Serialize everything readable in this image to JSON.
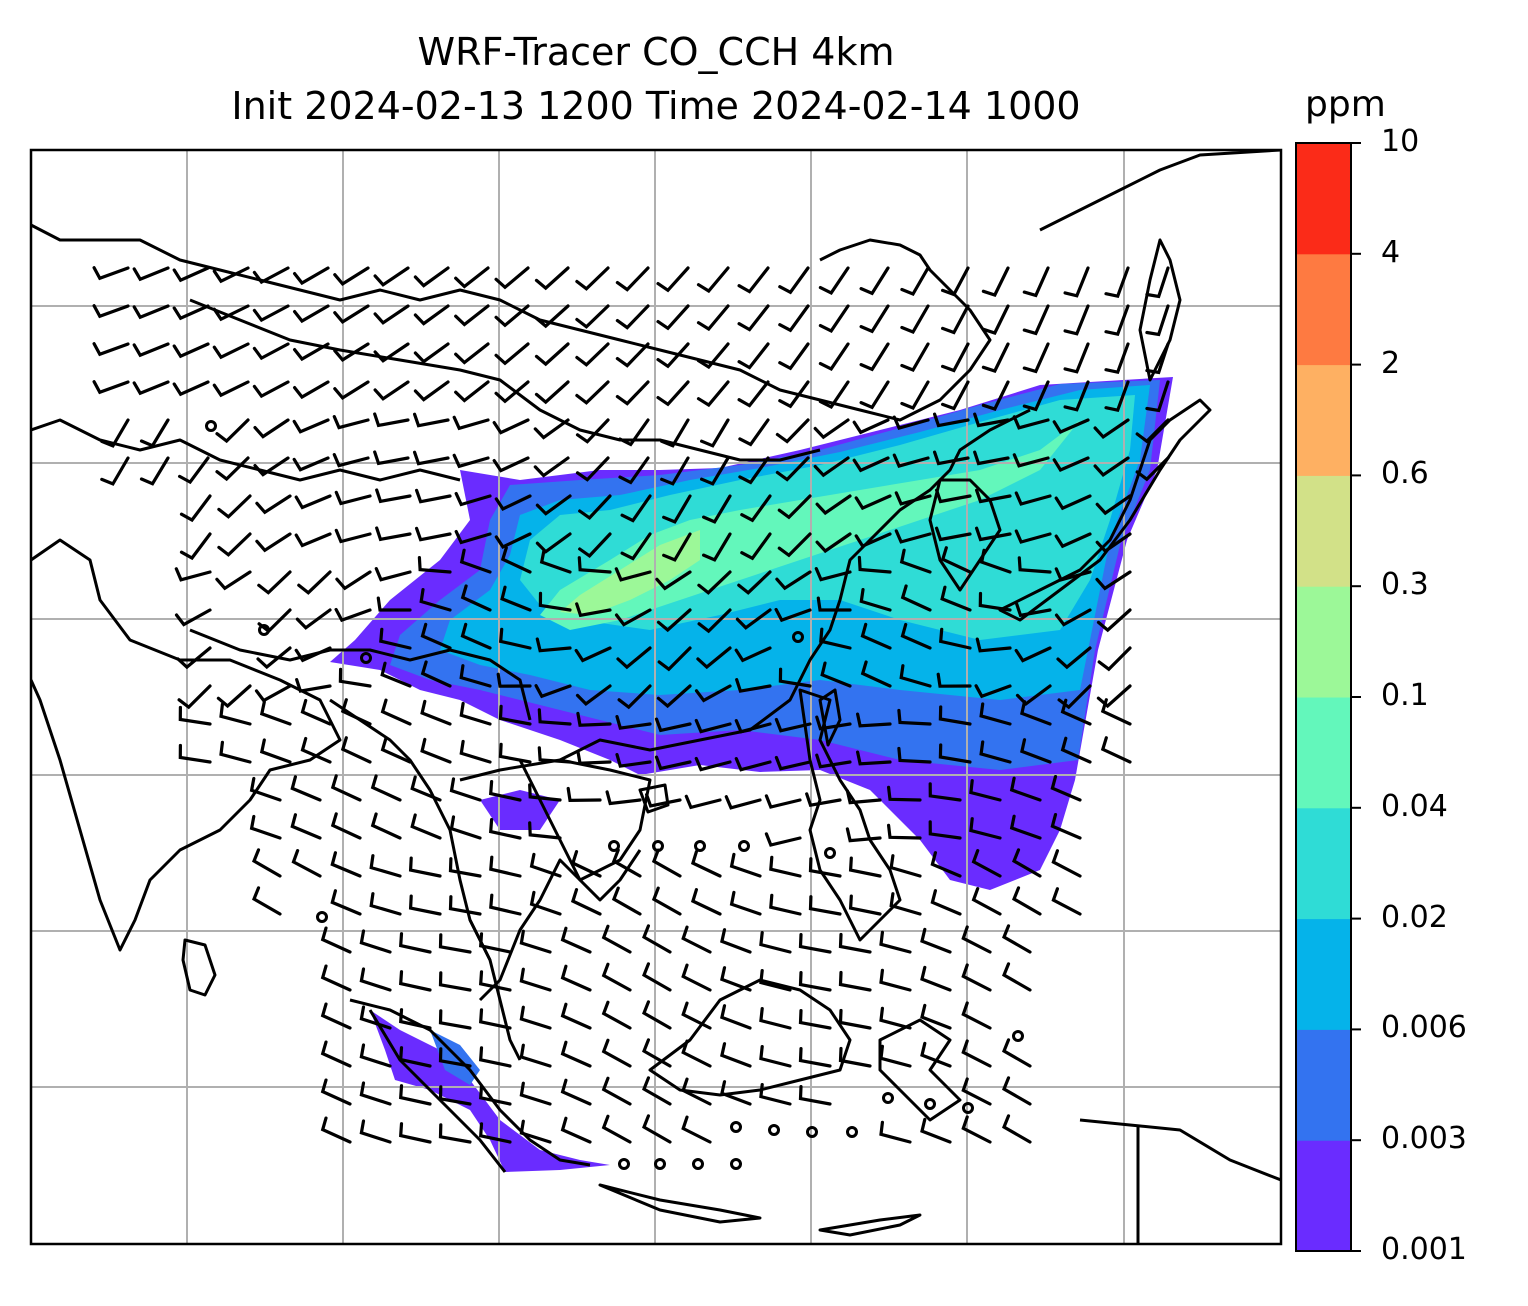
{
  "title": {
    "line1": "WRF-Tracer CO_CCH 4km",
    "line2": "Init 2024-02-13 1200 Time 2024-02-14 1000"
  },
  "colorbar": {
    "unit": "ppm",
    "levels": [
      "0.001",
      "0.003",
      "0.006",
      "0.02",
      "0.04",
      "0.1",
      "0.3",
      "0.6",
      "2",
      "4",
      "10"
    ],
    "colors": [
      "#6a2cff",
      "#3373f0",
      "#05b3ea",
      "#2fdcd6",
      "#63f7bb",
      "#9cf898",
      "#d2e188",
      "#feb062",
      "#fe7a41",
      "#fb2b18"
    ]
  },
  "map": {
    "gridlines": true,
    "background": "#ffffff",
    "coastline_color": "#000000",
    "overlay": "wind barbs",
    "plume_color_levels": [
      "0.003",
      "0.02",
      "0.04",
      "0.1"
    ]
  }
}
